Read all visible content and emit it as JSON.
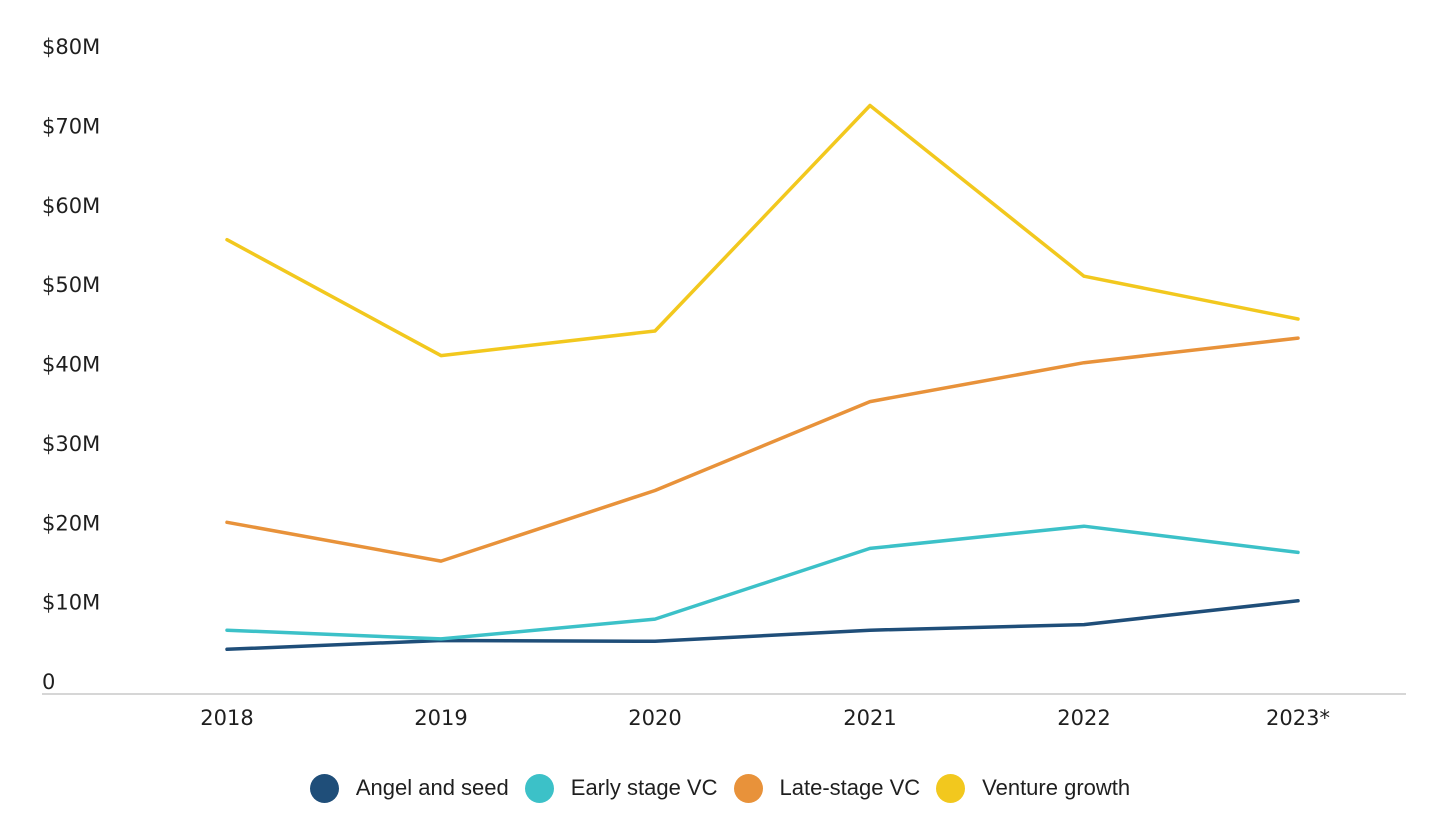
{
  "chart_data": {
    "type": "line",
    "categories": [
      "2018",
      "2019",
      "2020",
      "2021",
      "2022",
      "2023*"
    ],
    "ylim": [
      0,
      80
    ],
    "yticks": [
      0,
      10,
      20,
      30,
      40,
      50,
      60,
      70,
      80
    ],
    "ytick_labels": [
      "0",
      "$10M",
      "$20M",
      "$30M",
      "$40M",
      "$50M",
      "$60M",
      "$70M",
      "$80M"
    ],
    "grid": false,
    "legend_position": "bottom-center",
    "series": [
      {
        "name": "Angel and seed",
        "color": "#1f4e79",
        "values": [
          4.0,
          5.1,
          5.0,
          6.4,
          7.1,
          10.1
        ]
      },
      {
        "name": "Early stage VC",
        "color": "#3cc1c8",
        "values": [
          6.4,
          5.3,
          7.8,
          16.7,
          19.5,
          16.2
        ]
      },
      {
        "name": "Late-stage VC",
        "color": "#e8923a",
        "values": [
          20.0,
          15.1,
          24.0,
          35.2,
          40.1,
          43.2
        ]
      },
      {
        "name": "Venture growth",
        "color": "#f2c81e",
        "values": [
          55.6,
          41.0,
          44.1,
          72.5,
          51.0,
          45.6
        ]
      }
    ]
  }
}
